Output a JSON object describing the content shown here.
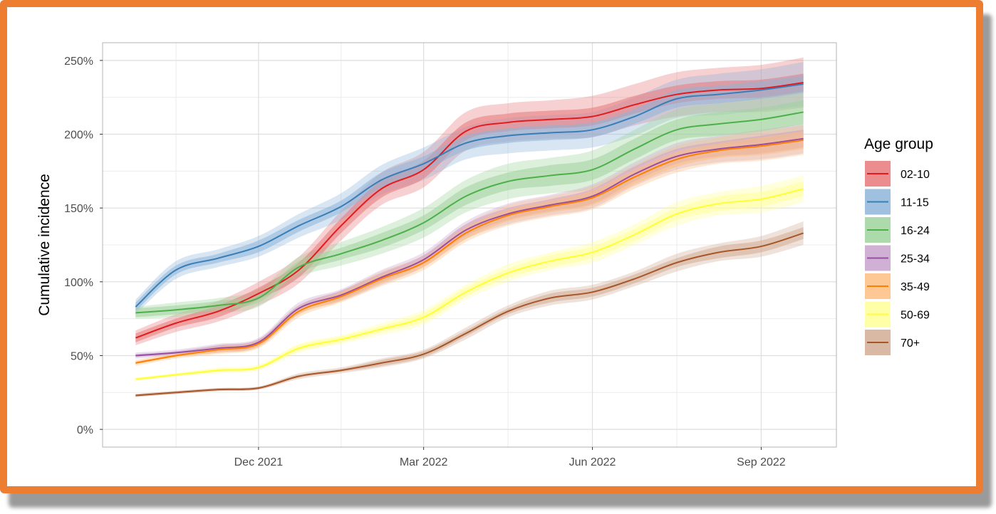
{
  "chart_data": {
    "type": "line",
    "title": "",
    "xlabel": "",
    "ylabel": "Cumulative incidence",
    "y_format": "percent",
    "ylim": [
      -12,
      262
    ],
    "y_ticks": [
      0,
      50,
      100,
      150,
      200,
      250
    ],
    "y_tick_labels": [
      "0%",
      "50%",
      "100%",
      "150%",
      "200%",
      "250%"
    ],
    "x_dates": [
      "2021-09-25",
      "2021-10-17",
      "2021-11-09",
      "2021-12-01",
      "2021-12-23",
      "2022-01-15",
      "2022-02-06",
      "2022-03-01",
      "2022-03-24",
      "2022-04-16",
      "2022-05-09",
      "2022-06-01",
      "2022-06-24",
      "2022-07-17",
      "2022-08-09",
      "2022-09-01",
      "2022-09-24"
    ],
    "x_range": [
      "2021-09-07",
      "2022-10-12"
    ],
    "x_ticks": [
      "2021-12-01",
      "2022-03-01",
      "2022-06-01",
      "2022-09-01"
    ],
    "x_tick_labels": [
      "Dec 2021",
      "Mar 2022",
      "Jun 2022",
      "Sep 2022"
    ],
    "x_minor_ticks": [
      "2021-10-17",
      "2022-01-15",
      "2022-04-16",
      "2022-07-17"
    ],
    "grid": true,
    "legend": {
      "title": "Age group",
      "placement": "right"
    },
    "series": [
      {
        "name": "02-10",
        "color": "#E41A1C",
        "fill": "#E8787A",
        "values": [
          62,
          72,
          80,
          92,
          108,
          138,
          163,
          176,
          202,
          208,
          210,
          212,
          220,
          227,
          230,
          231,
          235
        ],
        "inner_halfwidth": [
          3,
          3,
          4,
          4,
          5,
          5,
          6,
          6,
          6,
          6,
          6,
          6,
          6,
          6,
          6,
          6,
          6
        ],
        "outer_halfwidth": [
          5,
          6,
          7,
          8,
          9,
          10,
          11,
          12,
          13,
          13,
          13,
          14,
          14,
          15,
          15,
          16,
          17
        ]
      },
      {
        "name": "11-15",
        "color": "#377EB8",
        "fill": "#8EB5D9",
        "values": [
          83,
          108,
          116,
          124,
          138,
          151,
          169,
          180,
          194,
          199,
          201,
          203,
          212,
          224,
          227,
          230,
          234
        ],
        "inner_halfwidth": [
          3,
          3,
          3,
          4,
          4,
          4,
          5,
          5,
          5,
          5,
          5,
          5,
          5,
          6,
          6,
          6,
          6
        ],
        "outer_halfwidth": [
          5,
          6,
          6,
          7,
          8,
          9,
          10,
          11,
          11,
          12,
          12,
          12,
          13,
          13,
          14,
          14,
          15
        ]
      },
      {
        "name": "16-24",
        "color": "#4DAF4A",
        "fill": "#9ED39C",
        "values": [
          79,
          81,
          84,
          89,
          110,
          119,
          128,
          140,
          158,
          168,
          172,
          176,
          190,
          203,
          207,
          210,
          215
        ],
        "inner_halfwidth": [
          3,
          3,
          3,
          3,
          4,
          4,
          5,
          5,
          6,
          6,
          7,
          7,
          7,
          7,
          8,
          8,
          8
        ],
        "outer_halfwidth": [
          4,
          5,
          5,
          6,
          7,
          8,
          9,
          10,
          11,
          12,
          12,
          13,
          13,
          14,
          14,
          15,
          15
        ]
      },
      {
        "name": "25-34",
        "color": "#984EA3",
        "fill": "#C8A3CE",
        "values": [
          50,
          52,
          55,
          59,
          82,
          91,
          103,
          115,
          135,
          146,
          152,
          158,
          173,
          185,
          190,
          193,
          197
        ],
        "inner_halfwidth": [
          1,
          1,
          2,
          2,
          2,
          3,
          3,
          3,
          4,
          4,
          4,
          5,
          5,
          5,
          5,
          6,
          6
        ],
        "outer_halfwidth": [
          2,
          2,
          3,
          3,
          4,
          4,
          5,
          5,
          6,
          7,
          7,
          8,
          8,
          9,
          9,
          10,
          10
        ]
      },
      {
        "name": "35-49",
        "color": "#FF7F00",
        "fill": "#FDBE80",
        "values": [
          45,
          50,
          54,
          58,
          80,
          90,
          102,
          113,
          133,
          145,
          151,
          157,
          171,
          183,
          189,
          192,
          196
        ],
        "inner_halfwidth": [
          1,
          1,
          2,
          2,
          2,
          3,
          3,
          3,
          4,
          4,
          4,
          5,
          5,
          5,
          5,
          6,
          6
        ],
        "outer_halfwidth": [
          2,
          2,
          3,
          3,
          4,
          4,
          5,
          5,
          6,
          7,
          7,
          8,
          8,
          9,
          9,
          10,
          10
        ]
      },
      {
        "name": "50-69",
        "color": "#FFFF33",
        "fill": "#FFFF99",
        "values": [
          34,
          37,
          40,
          42,
          55,
          61,
          68,
          76,
          93,
          106,
          114,
          120,
          132,
          146,
          153,
          156,
          163
        ],
        "inner_halfwidth": [
          1,
          1,
          1,
          1,
          2,
          2,
          2,
          3,
          3,
          3,
          4,
          4,
          4,
          4,
          5,
          5,
          5
        ],
        "outer_halfwidth": [
          1,
          1,
          2,
          2,
          3,
          3,
          4,
          5,
          5,
          6,
          6,
          7,
          7,
          8,
          8,
          9,
          9
        ]
      },
      {
        "name": "70+",
        "color": "#A65628",
        "fill": "#D2AB94",
        "values": [
          23,
          25,
          27,
          28,
          36,
          40,
          45,
          51,
          65,
          80,
          89,
          93,
          102,
          113,
          120,
          124,
          133
        ],
        "inner_halfwidth": [
          1,
          1,
          1,
          1,
          1,
          1,
          2,
          2,
          2,
          2,
          3,
          3,
          3,
          3,
          4,
          4,
          4
        ],
        "outer_halfwidth": [
          1,
          1,
          1,
          1,
          2,
          2,
          3,
          3,
          4,
          4,
          5,
          5,
          5,
          6,
          6,
          7,
          8
        ]
      }
    ]
  },
  "frame": {
    "border_color": "#ED7D31",
    "shadow_color": "#9a9a9a"
  }
}
